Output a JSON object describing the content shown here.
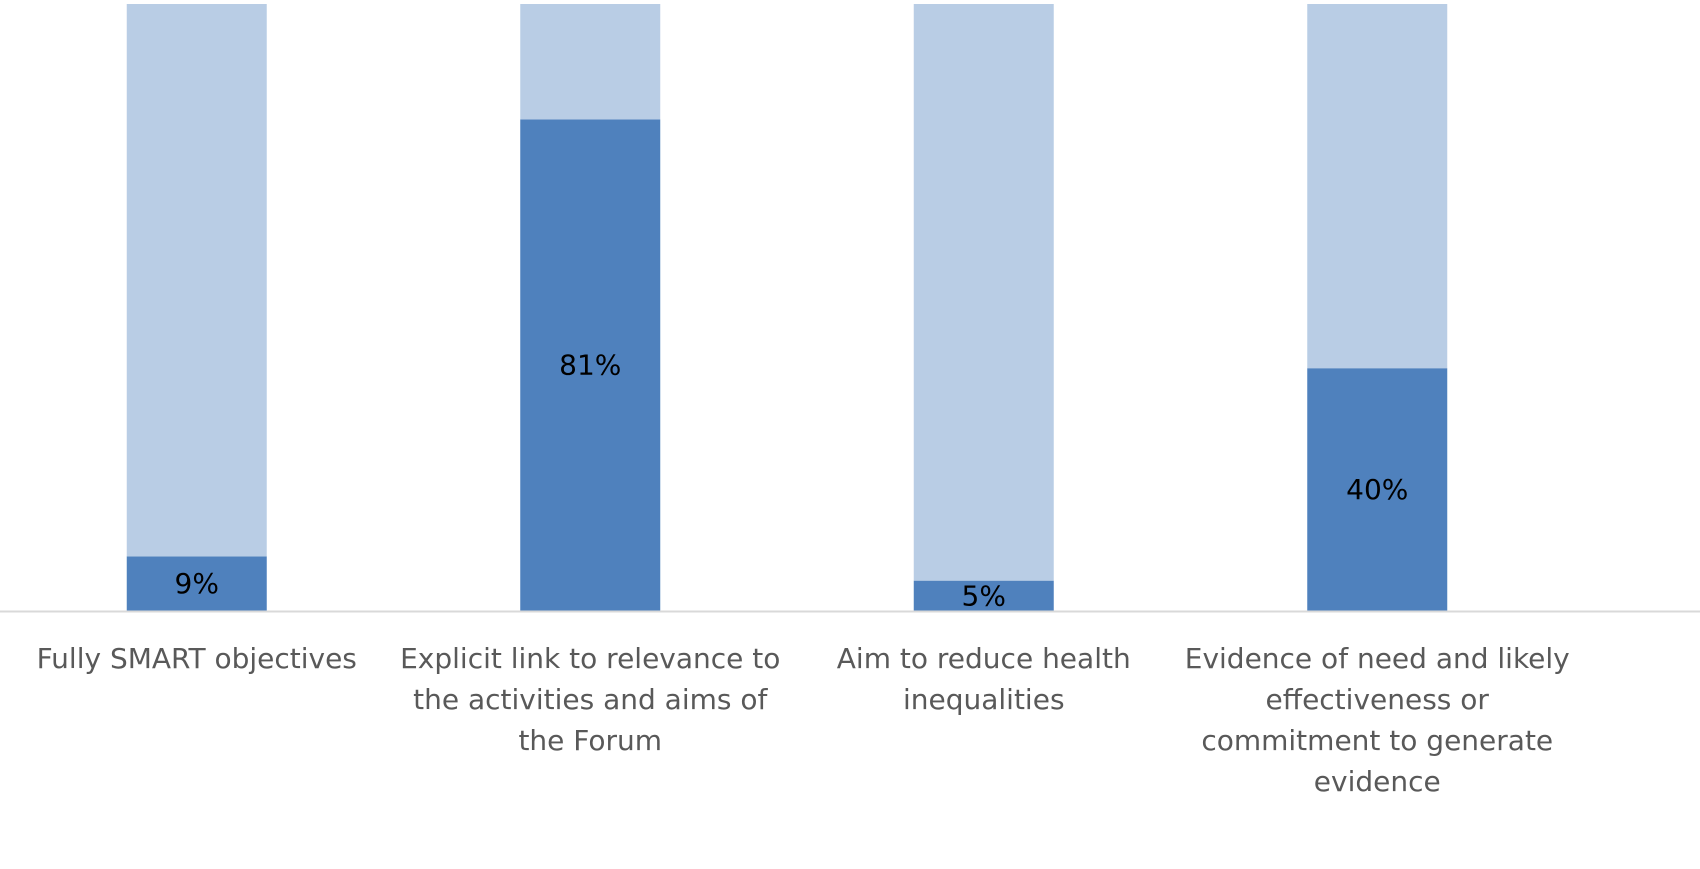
{
  "colors": {
    "value_bar": "#4f81bd",
    "remainder_bar": "#b9cde5",
    "axis_line": "#d9d9d9",
    "category_text": "#595959",
    "data_label_text": "#000000",
    "background": "#ffffff"
  },
  "chart_data": {
    "type": "bar",
    "stacked": true,
    "categories": [
      "Fully SMART objectives",
      "Explicit link to relevance to the activities and aims of the Forum",
      "Aim to reduce health inequalities",
      "Evidence of need and likely effectiveness or commitment to generate evidence"
    ],
    "category_label_lines": [
      [
        "Fully SMART objectives"
      ],
      [
        "Explicit link to relevance to",
        "the activities and aims of",
        "the Forum"
      ],
      [
        "Aim to reduce health",
        "inequalities"
      ],
      [
        "Evidence of need and likely",
        "effectiveness or",
        "commitment to generate",
        "evidence"
      ]
    ],
    "series": [
      {
        "values": [
          9,
          81,
          5,
          40
        ],
        "labels": [
          "9%",
          "81%",
          "5%",
          "40%"
        ]
      },
      {
        "values": [
          91,
          19,
          95,
          60
        ]
      }
    ],
    "ylim": [
      0,
      100
    ],
    "unit": "%",
    "grid": false,
    "legend": "none",
    "title": "",
    "xlabel": "",
    "ylabel": ""
  }
}
